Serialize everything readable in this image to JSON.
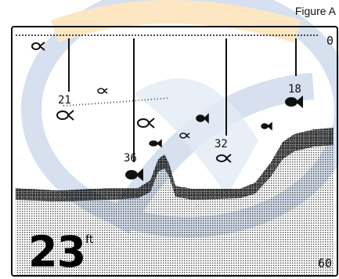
{
  "figure_caption": "Figure A",
  "scale": {
    "top": "0",
    "bottom": "60"
  },
  "depth": {
    "value": "23",
    "unit": "ft"
  },
  "fish_tags": [
    {
      "depth": "21"
    },
    {
      "depth": "36"
    },
    {
      "depth": "32"
    },
    {
      "depth": "18"
    }
  ],
  "colors": {
    "ink": "#111111",
    "screen_bg": "#ffffff",
    "watermark_blue": "#c9d7e8",
    "watermark_orange": "#fde6c2"
  }
}
